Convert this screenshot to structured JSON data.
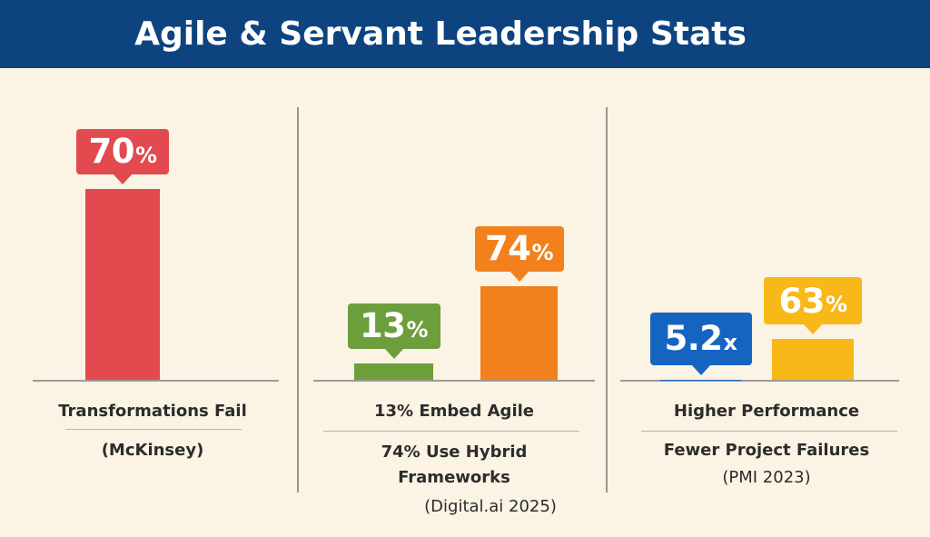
{
  "header": {
    "title": "Agile & Servant Leadership Stats"
  },
  "chart_data": [
    {
      "type": "bar",
      "categories": [
        "Transformations Fail"
      ],
      "series": [
        {
          "values": [
            70
          ]
        }
      ],
      "data_labels": [
        "70",
        "%"
      ],
      "labels": [
        "Transformations Fail",
        "(McKinsey)"
      ],
      "colors": [
        "#e24a4f"
      ]
    },
    {
      "type": "bar",
      "categories": [
        "13% Embed Agile",
        "74% Use Hybrid Frameworks"
      ],
      "series": [
        {
          "values": [
            13,
            74
          ]
        }
      ],
      "data_labels": [
        [
          "13",
          "%"
        ],
        [
          "74",
          "%"
        ]
      ],
      "labels": [
        "13% Embed Agile",
        "74% Use Hybrid",
        "Frameworks",
        "(Digital.ai 2025)"
      ],
      "colors": [
        "#6d9e3c",
        "#f2811d"
      ]
    },
    {
      "type": "bar",
      "categories": [
        "Higher Performance",
        "Fewer Project Failures"
      ],
      "series": [
        {
          "values": [
            5.2,
            63
          ]
        }
      ],
      "data_labels": [
        [
          "5.2",
          "x"
        ],
        [
          "63",
          "%"
        ]
      ],
      "labels": [
        "Higher Performance",
        "Fewer Project Failures",
        "(PMI 2023)"
      ],
      "colors": [
        "#1565c0",
        "#f7b818"
      ]
    }
  ]
}
